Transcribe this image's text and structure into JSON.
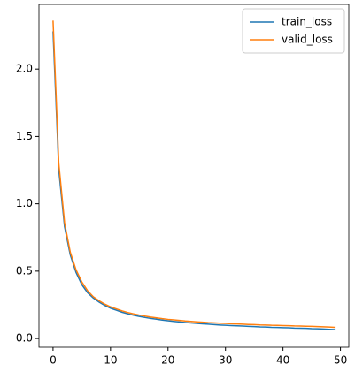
{
  "chart_data": {
    "type": "line",
    "x": [
      0,
      1,
      2,
      3,
      4,
      5,
      6,
      7,
      8,
      9,
      10,
      11,
      12,
      13,
      14,
      15,
      16,
      17,
      18,
      19,
      20,
      21,
      22,
      23,
      24,
      25,
      26,
      27,
      28,
      29,
      30,
      31,
      32,
      33,
      34,
      35,
      36,
      37,
      38,
      39,
      40,
      41,
      42,
      43,
      44,
      45,
      46,
      47,
      48,
      49
    ],
    "series": [
      {
        "name": "train_loss",
        "color": "#1f77b4",
        "values": [
          2.28,
          1.25,
          0.83,
          0.62,
          0.49,
          0.4,
          0.34,
          0.3,
          0.27,
          0.245,
          0.225,
          0.21,
          0.195,
          0.183,
          0.173,
          0.164,
          0.156,
          0.149,
          0.143,
          0.137,
          0.132,
          0.127,
          0.123,
          0.119,
          0.115,
          0.112,
          0.109,
          0.106,
          0.103,
          0.1,
          0.098,
          0.096,
          0.094,
          0.092,
          0.09,
          0.088,
          0.086,
          0.085,
          0.083,
          0.082,
          0.08,
          0.079,
          0.077,
          0.076,
          0.075,
          0.073,
          0.072,
          0.07,
          0.068,
          0.066
        ]
      },
      {
        "name": "valid_loss",
        "color": "#ff7f0e",
        "values": [
          2.36,
          1.3,
          0.86,
          0.64,
          0.51,
          0.42,
          0.355,
          0.31,
          0.28,
          0.255,
          0.235,
          0.22,
          0.205,
          0.193,
          0.183,
          0.174,
          0.166,
          0.159,
          0.153,
          0.147,
          0.142,
          0.138,
          0.134,
          0.13,
          0.127,
          0.124,
          0.121,
          0.118,
          0.116,
          0.114,
          0.112,
          0.11,
          0.108,
          0.106,
          0.104,
          0.103,
          0.101,
          0.1,
          0.098,
          0.097,
          0.096,
          0.095,
          0.093,
          0.092,
          0.091,
          0.09,
          0.088,
          0.087,
          0.085,
          0.083
        ]
      }
    ],
    "xlim": [
      -2.45,
      51.45
    ],
    "xticks": [
      0,
      10,
      20,
      30,
      40,
      50
    ],
    "ylim": [
      -0.065,
      2.48
    ],
    "yticks": [
      {
        "value": 0,
        "label": "0.0"
      },
      0.5,
      {
        "value": 1,
        "label": "1.0"
      },
      1.5,
      {
        "value": 2,
        "label": "2.0"
      }
    ],
    "legend": "upper right",
    "grid": false
  }
}
